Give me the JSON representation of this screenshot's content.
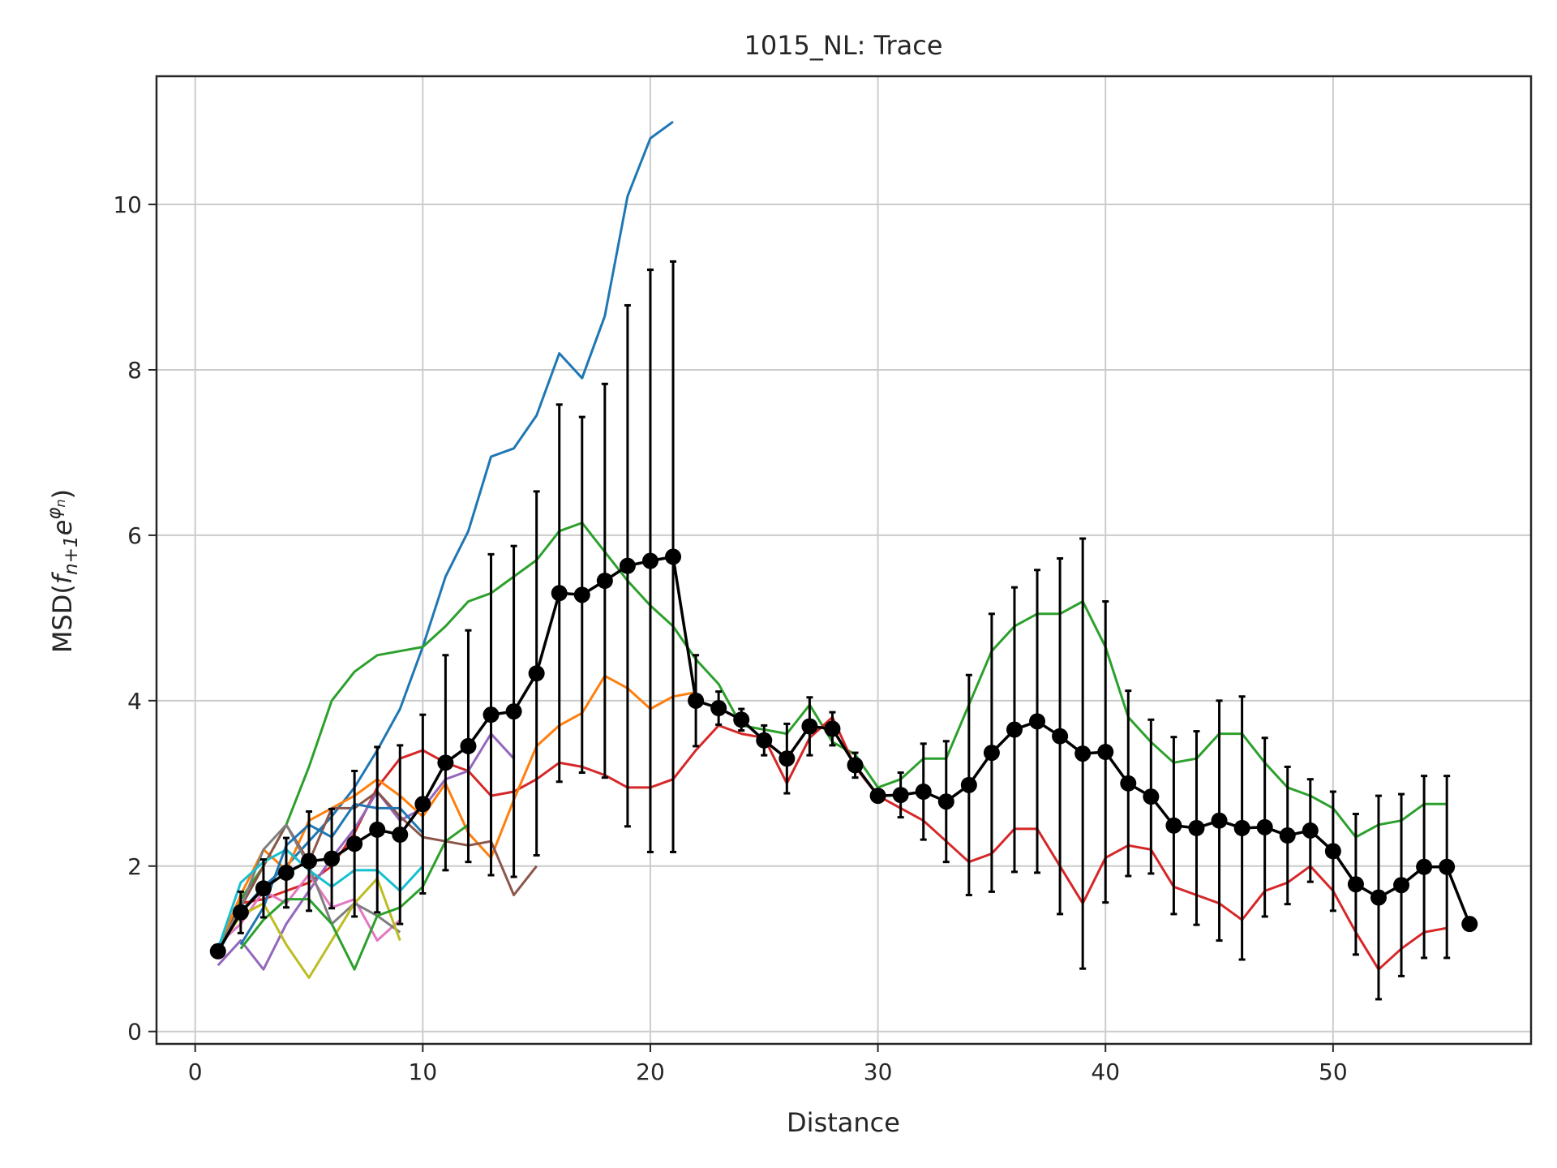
{
  "chart_data": {
    "type": "line",
    "title": "1015_NL: Trace",
    "xlabel": "Distance",
    "ylabel": "MSD(f_{n+1}e^{φ_n})",
    "xlim": [
      -1.7,
      58.7
    ],
    "ylim": [
      -0.15,
      11.55
    ],
    "xticks": [
      0,
      10,
      20,
      30,
      40,
      50
    ],
    "yticks": [
      0,
      2,
      4,
      6,
      8,
      10
    ],
    "grid": true,
    "legend": "none",
    "series": [
      {
        "color": "#1f77b4",
        "x": [
          1,
          2,
          3,
          4,
          5,
          6,
          7,
          8,
          9,
          10,
          11,
          12,
          13,
          14,
          15,
          16,
          17,
          18,
          19,
          20,
          21
        ],
        "y": [
          0.95,
          1.45,
          1.75,
          2.0,
          2.3,
          2.6,
          2.95,
          3.4,
          3.9,
          4.65,
          5.5,
          6.05,
          6.95,
          7.05,
          7.45,
          8.2,
          7.9,
          8.65,
          10.1,
          10.8,
          11.0
        ]
      },
      {
        "color": "#2ca02c",
        "x": [
          1,
          2,
          3,
          4,
          5,
          6,
          7,
          8,
          9,
          10,
          11,
          12,
          13,
          14,
          15,
          16,
          17,
          18,
          19,
          20,
          21,
          22,
          23,
          24,
          25,
          26,
          27,
          28,
          29,
          30,
          31,
          32,
          33,
          34,
          35,
          36,
          37,
          38,
          39,
          40,
          41,
          42,
          43,
          44,
          45,
          46,
          47,
          48,
          49,
          50,
          51,
          52,
          53,
          54,
          55
        ],
        "y": [
          1.0,
          1.6,
          2.0,
          2.5,
          3.2,
          4.0,
          4.35,
          4.55,
          4.6,
          4.65,
          4.9,
          5.2,
          5.3,
          5.5,
          5.7,
          6.05,
          6.15,
          5.8,
          5.45,
          5.15,
          4.9,
          4.5,
          4.2,
          3.7,
          3.65,
          3.6,
          3.95,
          3.5,
          3.35,
          2.95,
          3.05,
          3.3,
          3.3,
          3.95,
          4.6,
          4.9,
          5.05,
          5.05,
          5.2,
          4.65,
          3.8,
          3.5,
          3.25,
          3.3,
          3.6,
          3.6,
          3.25,
          2.95,
          2.85,
          2.7,
          2.35,
          2.5,
          2.55,
          2.75,
          2.75
        ]
      },
      {
        "color": "#d62728",
        "x": [
          1,
          2,
          3,
          4,
          5,
          6,
          7,
          8,
          9,
          10,
          11,
          12,
          13,
          14,
          15,
          16,
          17,
          18,
          19,
          20,
          21,
          22,
          23,
          24,
          25,
          26,
          27,
          28,
          29,
          30,
          31,
          32,
          33,
          34,
          35,
          36,
          37,
          38,
          39,
          40,
          41,
          42,
          43,
          44,
          45,
          46,
          47,
          48,
          49,
          50,
          51,
          52,
          53,
          54,
          55
        ],
        "y": [
          0.95,
          1.55,
          1.6,
          1.7,
          1.8,
          2.0,
          2.4,
          2.95,
          3.3,
          3.4,
          3.25,
          3.15,
          2.85,
          2.9,
          3.05,
          3.25,
          3.2,
          3.1,
          2.95,
          2.95,
          3.05,
          3.4,
          3.7,
          3.6,
          3.55,
          3.0,
          3.55,
          3.8,
          3.2,
          2.85,
          2.7,
          2.55,
          2.3,
          2.05,
          2.15,
          2.45,
          2.45,
          2.0,
          1.55,
          2.1,
          2.25,
          2.2,
          1.75,
          1.65,
          1.55,
          1.35,
          1.7,
          1.8,
          2.0,
          1.7,
          1.2,
          0.75,
          1.0,
          1.2,
          1.25
        ]
      },
      {
        "color": "#ff7f0e",
        "x": [
          1,
          2,
          3,
          4,
          5,
          6,
          7,
          8,
          9,
          10,
          11,
          12,
          13,
          14,
          15,
          16,
          17,
          18,
          19,
          20,
          21,
          22
        ],
        "y": [
          1.0,
          1.65,
          2.2,
          1.95,
          2.55,
          2.7,
          2.85,
          3.05,
          2.85,
          2.6,
          3.0,
          2.4,
          2.1,
          2.8,
          3.45,
          3.7,
          3.85,
          4.3,
          4.15,
          3.9,
          4.05,
          4.1
        ]
      },
      {
        "color": "#9467bd",
        "x": [
          1,
          2,
          3,
          4,
          5,
          6,
          7,
          8,
          9,
          10,
          11,
          12,
          13,
          14
        ],
        "y": [
          0.8,
          1.1,
          0.75,
          1.3,
          1.7,
          2.1,
          2.45,
          2.9,
          2.55,
          2.7,
          3.05,
          3.15,
          3.6,
          3.3
        ]
      },
      {
        "color": "#8c564b",
        "x": [
          1,
          2,
          3,
          4,
          5,
          6,
          7,
          8,
          9,
          10,
          11,
          12,
          13,
          14,
          15
        ],
        "y": [
          1.0,
          1.5,
          2.0,
          2.5,
          2.05,
          2.7,
          2.7,
          2.9,
          2.6,
          2.35,
          2.3,
          2.25,
          2.3,
          1.65,
          2.0
        ]
      },
      {
        "color": "#e377c2",
        "x": [
          1,
          2,
          3,
          4,
          5,
          6,
          7,
          8,
          9
        ],
        "y": [
          1.05,
          1.3,
          1.7,
          1.55,
          1.9,
          1.5,
          1.6,
          1.1,
          1.35
        ]
      },
      {
        "color": "#7f7f7f",
        "x": [
          1,
          2,
          3,
          4,
          5,
          6,
          7,
          8,
          9
        ],
        "y": [
          1.0,
          1.5,
          2.2,
          2.5,
          2.0,
          1.3,
          1.55,
          1.4,
          1.2
        ]
      },
      {
        "color": "#bcbd22",
        "x": [
          1,
          2,
          3,
          4,
          5,
          6,
          7,
          8,
          9
        ],
        "y": [
          1.0,
          1.4,
          1.55,
          1.05,
          0.65,
          1.1,
          1.55,
          1.85,
          1.1
        ]
      },
      {
        "color": "#17becf",
        "x": [
          1,
          2,
          3,
          4,
          5,
          6,
          7,
          8,
          9,
          10
        ],
        "y": [
          1.0,
          1.8,
          2.05,
          2.2,
          1.95,
          1.75,
          1.95,
          1.95,
          1.7,
          2.0
        ]
      },
      {
        "color": "#1f77b4",
        "x": [
          2,
          3,
          4,
          5,
          6,
          7,
          8,
          9,
          10
        ],
        "y": [
          1.05,
          1.5,
          2.25,
          2.5,
          2.35,
          2.75,
          2.7,
          2.7,
          2.4
        ]
      },
      {
        "color": "#2ca02c",
        "x": [
          2,
          3,
          4,
          5,
          6,
          7,
          8,
          9,
          10,
          11,
          12
        ],
        "y": [
          1.0,
          1.35,
          1.6,
          1.6,
          1.3,
          0.75,
          1.4,
          1.5,
          1.75,
          2.3,
          2.5
        ]
      }
    ],
    "mean": {
      "color": "#000000",
      "x": [
        1,
        2,
        3,
        4,
        5,
        6,
        7,
        8,
        9,
        10,
        11,
        12,
        13,
        14,
        15,
        16,
        17,
        18,
        19,
        20,
        21,
        22,
        23,
        24,
        25,
        26,
        27,
        28,
        29,
        30,
        31,
        32,
        33,
        34,
        35,
        36,
        37,
        38,
        39,
        40,
        41,
        42,
        43,
        44,
        45,
        46,
        47,
        48,
        49,
        50,
        51,
        52,
        53,
        54,
        55,
        56
      ],
      "y": [
        0.97,
        1.44,
        1.73,
        1.92,
        2.06,
        2.09,
        2.27,
        2.44,
        2.38,
        2.75,
        3.25,
        3.45,
        3.83,
        3.87,
        4.33,
        5.3,
        5.28,
        5.45,
        5.63,
        5.69,
        5.74,
        4.0,
        3.91,
        3.77,
        3.52,
        3.3,
        3.69,
        3.66,
        3.22,
        2.85,
        2.86,
        2.9,
        2.78,
        2.98,
        3.37,
        3.65,
        3.75,
        3.57,
        3.36,
        3.38,
        3.0,
        2.84,
        2.49,
        2.46,
        2.55,
        2.46,
        2.47,
        2.37,
        2.43,
        2.18,
        1.78,
        1.62,
        1.77,
        1.99,
        1.99,
        1.3
      ],
      "err": [
        0,
        0.25,
        0.35,
        0.42,
        0.6,
        0.6,
        0.88,
        1.0,
        1.08,
        1.08,
        1.3,
        1.4,
        1.94,
        2.0,
        2.2,
        2.28,
        2.15,
        2.38,
        3.15,
        3.52,
        3.57,
        0.55,
        0.2,
        0.13,
        0.18,
        0.42,
        0.35,
        0.2,
        0.15,
        0.05,
        0.27,
        0.58,
        0.73,
        1.33,
        1.68,
        1.72,
        1.83,
        2.15,
        2.6,
        1.82,
        1.12,
        0.93,
        1.07,
        1.17,
        1.45,
        1.59,
        1.08,
        0.83,
        0.62,
        0.72,
        0.85,
        1.23,
        1.1,
        1.1,
        1.1,
        0
      ]
    }
  }
}
